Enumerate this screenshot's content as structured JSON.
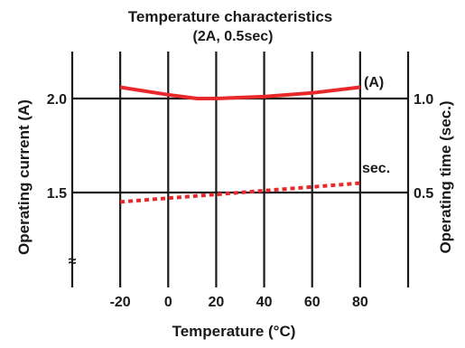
{
  "chart_data": {
    "type": "line",
    "title": "Temperature characteristics",
    "subtitle": "(2A, 0.5sec)",
    "xlabel": "Temperature (°C)",
    "ylabel_left": "Operating current (A)",
    "ylabel_right": "Operating time (sec.)",
    "x_ticks": [
      "-20",
      "0",
      "20",
      "40",
      "60",
      "80"
    ],
    "y_left_ticks": [
      "2.0",
      "1.5"
    ],
    "y_right_ticks": [
      "1.0",
      "0.5"
    ],
    "xlim": [
      -40,
      100
    ],
    "grid": true,
    "axis_break_symbol": "≈",
    "series": [
      {
        "name": "(A)",
        "axis": "left",
        "style": "solid",
        "color": "#e8282b",
        "x": [
          -20,
          0,
          12,
          20,
          40,
          60,
          80
        ],
        "y": [
          2.06,
          2.02,
          2.0,
          2.0,
          2.01,
          2.03,
          2.06
        ]
      },
      {
        "name": "sec.",
        "axis": "right",
        "style": "dotted",
        "color": "#e8282b",
        "x": [
          -20,
          0,
          20,
          40,
          60,
          80
        ],
        "y": [
          0.45,
          0.47,
          0.49,
          0.51,
          0.53,
          0.55
        ]
      }
    ]
  }
}
